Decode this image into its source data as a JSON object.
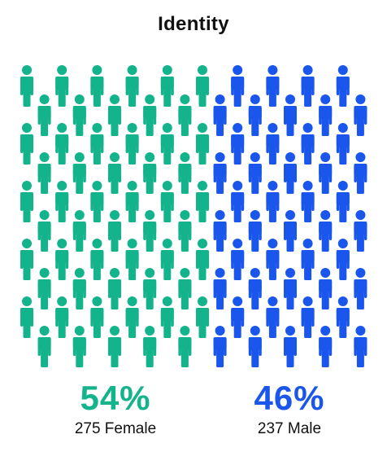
{
  "colors": {
    "female": "#13B38B",
    "male": "#1A56EB"
  },
  "chart_data": {
    "type": "pictogram",
    "title": "Identity",
    "categories": [
      "Female",
      "Male"
    ],
    "values": [
      275,
      237
    ],
    "percentages": [
      "54%",
      "46%"
    ],
    "icon": "person-icon",
    "icon_grid": {
      "rows": 10,
      "columns": 20,
      "columns_per_category": [
        11,
        9
      ]
    }
  },
  "summary": {
    "female": {
      "percent": "54%",
      "label": "275 Female"
    },
    "male": {
      "percent": "46%",
      "label": "237 Male"
    }
  }
}
